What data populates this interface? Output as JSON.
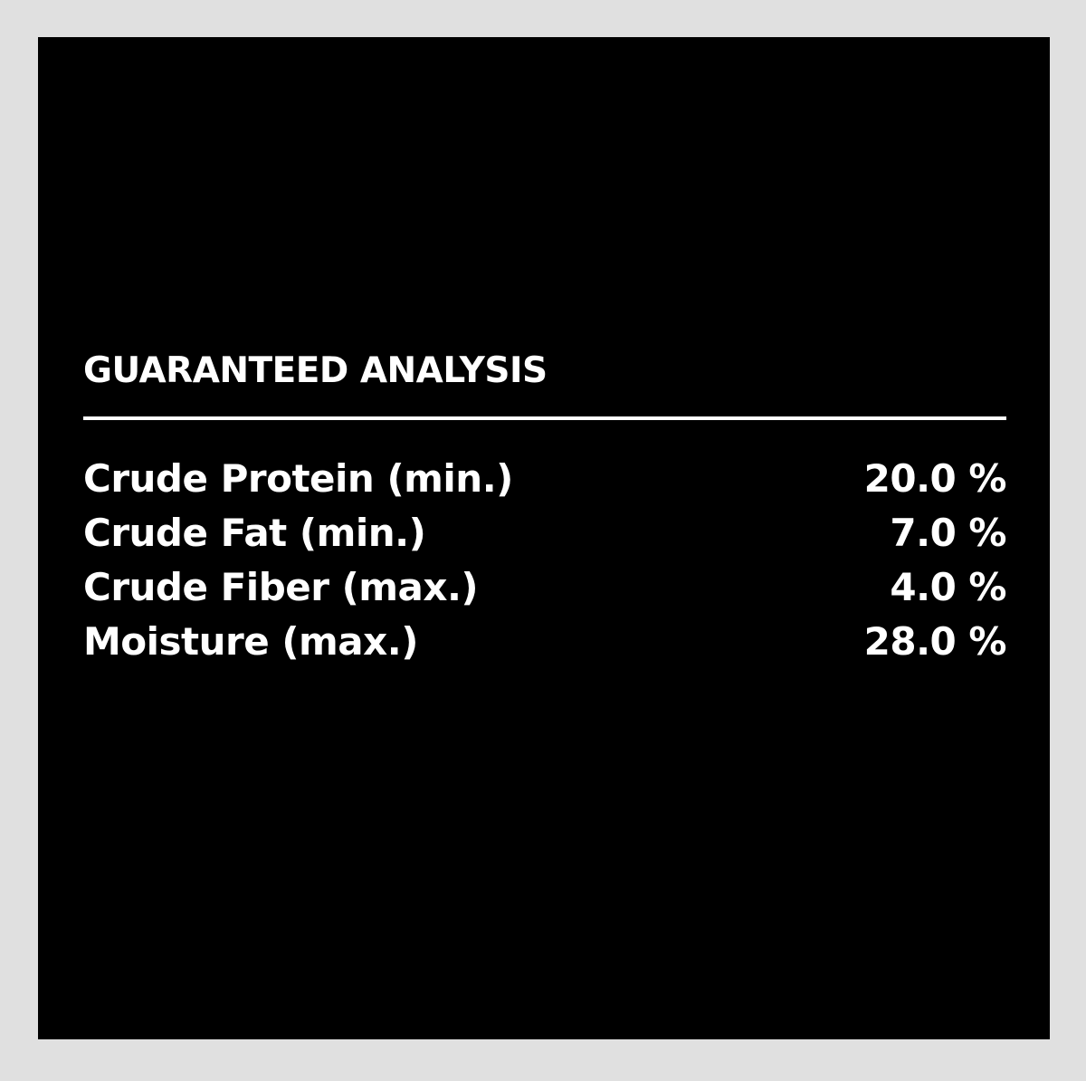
{
  "title": "GUARANTEED ANALYSIS",
  "rows": [
    {
      "label": "Crude Protein (min.)",
      "value": "20.0 %"
    },
    {
      "label": "Crude Fat (min.)",
      "value": "7.0 %"
    },
    {
      "label": "Crude Fiber (max.)",
      "value": "4.0 %"
    },
    {
      "label": "Moisture (max.)",
      "value": "28.0 %"
    }
  ],
  "colors": {
    "background": "#000000",
    "text": "#ffffff",
    "frame": "#e0e0e0"
  }
}
